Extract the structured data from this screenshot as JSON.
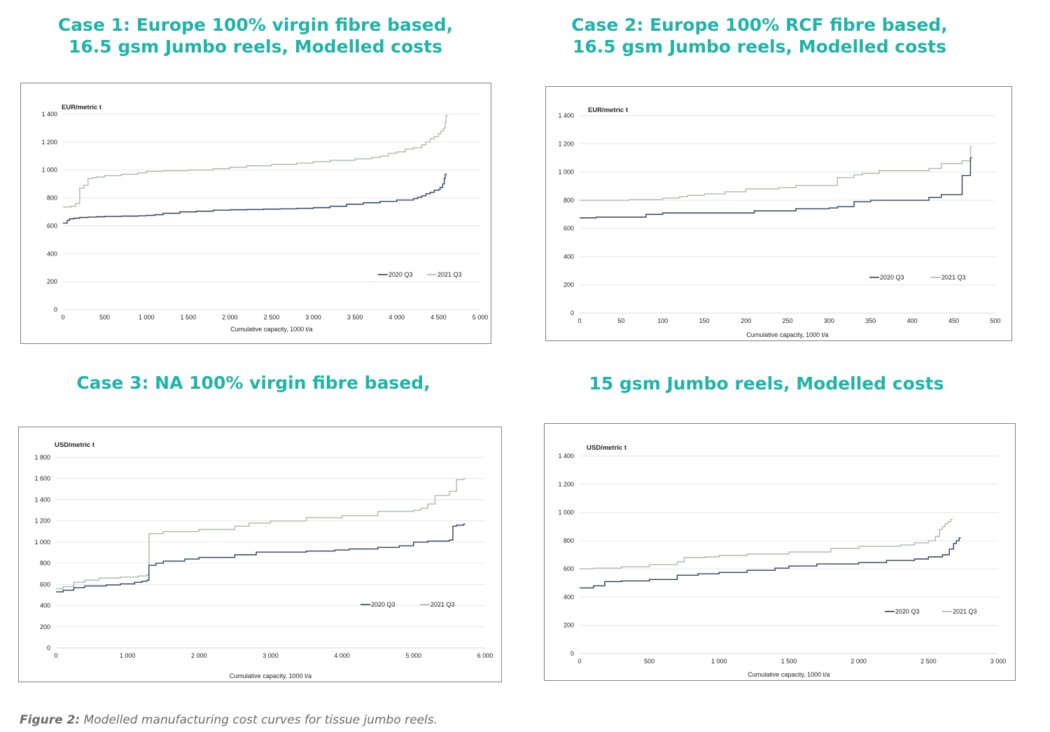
{
  "titles": {
    "case1": {
      "line1": "Case 1: Europe 100% virgin fibre based,",
      "line2": "16.5 gsm Jumbo reels, Modelled costs"
    },
    "case2": {
      "line1": "Case 2: Europe 100% RCF fibre based,",
      "line2": "16.5 gsm Jumbo reels, Modelled costs"
    },
    "case3": {
      "line1": "Case 3: NA 100% virgin fibre based,"
    },
    "case4": {
      "line1": "15 gsm Jumbo reels, Modelled costs"
    }
  },
  "caption": {
    "label": "Figure 2:",
    "text": " Modelled manufacturing cost curves for tissue jumbo reels."
  },
  "colors": {
    "title": "#1fb3aa",
    "series_2020": "#2d3e5f",
    "series_2021": "#a9bba9",
    "grid": "#e6e6e6"
  },
  "chart_data": [
    {
      "type": "line",
      "step": true,
      "ylabel": "EUR/metric t",
      "xlabel": "Cumulative capacity, 1000 t/a",
      "xlim": [
        0,
        5000
      ],
      "ylim": [
        0,
        1400
      ],
      "xticks": [
        0,
        500,
        1000,
        1500,
        2000,
        2500,
        3000,
        3500,
        4000,
        4500,
        5000
      ],
      "xtick_labels": [
        "0",
        "500",
        "1 000",
        "1 500",
        "2 000",
        "2 500",
        "3 000",
        "3 500",
        "4 000",
        "4 500",
        "5 000"
      ],
      "yticks": [
        0,
        200,
        400,
        600,
        800,
        1000,
        1200,
        1400
      ],
      "ytick_labels": [
        "0",
        "200",
        "400",
        "600",
        "800",
        "1 000",
        "1 200",
        "1 400"
      ],
      "grid": true,
      "legend": "bottom-right",
      "series": [
        {
          "name": "2020 Q3",
          "x": [
            0,
            50,
            80,
            130,
            200,
            300,
            400,
            500,
            700,
            900,
            1000,
            1100,
            1200,
            1400,
            1600,
            1800,
            2000,
            2200,
            2400,
            2600,
            2800,
            3000,
            3200,
            3400,
            3600,
            3800,
            4000,
            4200,
            4250,
            4300,
            4350,
            4400,
            4450,
            4500,
            4520,
            4550,
            4570,
            4580
          ],
          "y": [
            620,
            640,
            650,
            655,
            660,
            663,
            665,
            668,
            670,
            672,
            675,
            680,
            690,
            700,
            705,
            712,
            715,
            717,
            720,
            722,
            725,
            730,
            740,
            755,
            765,
            775,
            785,
            795,
            805,
            815,
            830,
            840,
            855,
            860,
            875,
            900,
            940,
            970
          ]
        },
        {
          "name": "2021 Q3",
          "x": [
            0,
            100,
            150,
            200,
            250,
            300,
            350,
            400,
            500,
            700,
            900,
            1000,
            1200,
            1500,
            1800,
            2000,
            2200,
            2500,
            2800,
            3000,
            3200,
            3500,
            3700,
            3800,
            3900,
            4000,
            4100,
            4200,
            4300,
            4350,
            4400,
            4450,
            4500,
            4530,
            4560,
            4580,
            4590
          ],
          "y": [
            735,
            740,
            760,
            870,
            890,
            940,
            945,
            950,
            960,
            970,
            980,
            990,
            995,
            1000,
            1010,
            1020,
            1030,
            1040,
            1050,
            1060,
            1070,
            1080,
            1090,
            1100,
            1120,
            1130,
            1150,
            1160,
            1180,
            1200,
            1225,
            1240,
            1260,
            1280,
            1300,
            1340,
            1390
          ]
        }
      ]
    },
    {
      "type": "line",
      "step": true,
      "ylabel": "EUR/metric t",
      "xlabel": "Cumulative capacity, 1000 t/a",
      "xlim": [
        0,
        500
      ],
      "ylim": [
        0,
        1400
      ],
      "xticks": [
        0,
        50,
        100,
        150,
        200,
        250,
        300,
        350,
        400,
        450,
        500
      ],
      "xtick_labels": [
        "0",
        "50",
        "100",
        "150",
        "200",
        "250",
        "300",
        "350",
        "400",
        "450",
        "500"
      ],
      "yticks": [
        0,
        200,
        400,
        600,
        800,
        1000,
        1200,
        1400
      ],
      "ytick_labels": [
        "0",
        "200",
        "400",
        "600",
        "800",
        "1 000",
        "1 200",
        "1 400"
      ],
      "grid": true,
      "legend": "bottom-right",
      "series": [
        {
          "name": "2020 Q3",
          "x": [
            0,
            20,
            80,
            100,
            210,
            260,
            300,
            310,
            330,
            350,
            420,
            435,
            460,
            470
          ],
          "y": [
            675,
            680,
            700,
            710,
            725,
            740,
            745,
            755,
            790,
            800,
            820,
            840,
            975,
            1100
          ]
        },
        {
          "name": "2021 Q3",
          "x": [
            0,
            60,
            100,
            120,
            130,
            150,
            175,
            200,
            240,
            260,
            310,
            330,
            340,
            360,
            420,
            435,
            460,
            470
          ],
          "y": [
            800,
            805,
            815,
            825,
            835,
            845,
            860,
            880,
            890,
            905,
            960,
            980,
            990,
            1010,
            1025,
            1060,
            1080,
            1180
          ]
        }
      ]
    },
    {
      "type": "line",
      "step": true,
      "ylabel": "USD/metric t",
      "xlabel": "Cumulative capacity, 1000 t/a",
      "xlim": [
        0,
        6000
      ],
      "ylim": [
        0,
        1800
      ],
      "xticks": [
        0,
        1000,
        2000,
        3000,
        4000,
        5000,
        6000
      ],
      "xtick_labels": [
        "0",
        "1 000",
        "2 000",
        "3 000",
        "4 000",
        "5 000",
        "6 000"
      ],
      "yticks": [
        0,
        200,
        400,
        600,
        800,
        1000,
        1200,
        1400,
        1600,
        1800
      ],
      "ytick_labels": [
        "0",
        "200",
        "400",
        "600",
        "800",
        "1 000",
        "1 200",
        "1 400",
        "1 600",
        "1 800"
      ],
      "grid": true,
      "legend": "bottom-right",
      "series": [
        {
          "name": "2020 Q3",
          "x": [
            0,
            100,
            250,
            400,
            700,
            900,
            1100,
            1200,
            1270,
            1300,
            1400,
            1500,
            1800,
            2000,
            2500,
            2800,
            3500,
            3900,
            4100,
            4500,
            4800,
            5000,
            5200,
            5500,
            5550,
            5600,
            5700
          ],
          "y": [
            530,
            545,
            570,
            585,
            595,
            605,
            620,
            630,
            640,
            780,
            800,
            820,
            840,
            855,
            880,
            905,
            915,
            925,
            935,
            950,
            965,
            1000,
            1010,
            1020,
            1150,
            1160,
            1170
          ]
        },
        {
          "name": "2021 Q3",
          "x": [
            0,
            100,
            250,
            400,
            600,
            900,
            1150,
            1270,
            1300,
            1500,
            2000,
            2500,
            2700,
            3000,
            3500,
            4000,
            4500,
            5000,
            5100,
            5200,
            5300,
            5500,
            5600,
            5700
          ],
          "y": [
            560,
            580,
            620,
            640,
            660,
            670,
            680,
            690,
            1080,
            1100,
            1120,
            1150,
            1180,
            1200,
            1230,
            1250,
            1290,
            1300,
            1320,
            1360,
            1440,
            1480,
            1590,
            1600
          ]
        }
      ]
    },
    {
      "type": "line",
      "step": true,
      "ylabel": "USD/metric t",
      "xlabel": "Cumulative capacity, 1000 t/a",
      "xlim": [
        0,
        3000
      ],
      "ylim": [
        0,
        1400
      ],
      "xticks": [
        0,
        500,
        1000,
        1500,
        2000,
        2500,
        3000
      ],
      "xtick_labels": [
        "0",
        "500",
        "1 000",
        "1 500",
        "2 000",
        "2 500",
        "3 000"
      ],
      "yticks": [
        0,
        200,
        400,
        600,
        800,
        1000,
        1200,
        1400
      ],
      "ytick_labels": [
        "0",
        "200",
        "400",
        "600",
        "800",
        "1 000",
        "1 200",
        "1 400"
      ],
      "grid": true,
      "legend": "bottom-right",
      "series": [
        {
          "name": "2020 Q3",
          "x": [
            0,
            100,
            180,
            300,
            500,
            700,
            850,
            1000,
            1200,
            1400,
            1500,
            1700,
            2000,
            2200,
            2400,
            2500,
            2600,
            2650,
            2680,
            2700,
            2720
          ],
          "y": [
            465,
            480,
            510,
            515,
            525,
            555,
            565,
            575,
            590,
            605,
            620,
            635,
            645,
            660,
            670,
            685,
            700,
            740,
            780,
            800,
            820
          ]
        },
        {
          "name": "2021 Q3",
          "x": [
            0,
            100,
            300,
            500,
            700,
            750,
            900,
            1000,
            1200,
            1500,
            1800,
            2000,
            2300,
            2400,
            2500,
            2550,
            2580,
            2600,
            2620,
            2640,
            2660
          ],
          "y": [
            600,
            605,
            615,
            630,
            650,
            680,
            685,
            695,
            705,
            720,
            745,
            760,
            770,
            785,
            800,
            830,
            880,
            900,
            920,
            935,
            950
          ]
        }
      ]
    }
  ]
}
